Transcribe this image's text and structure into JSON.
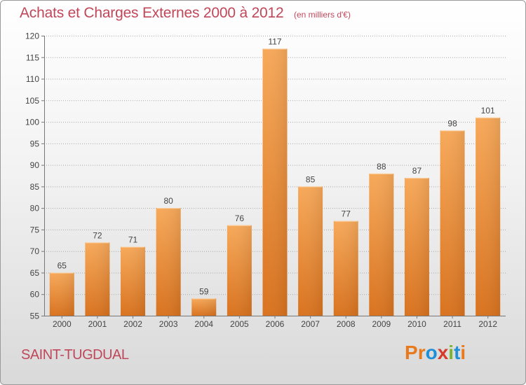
{
  "header": {
    "title": "Achats et Charges Externes 2000 à 2012",
    "unit_note": "(en milliers d'€)"
  },
  "footer": {
    "commune": "SAINT-TUGDUAL",
    "logo_text": "Proxiti",
    "logo_colors": [
      "#e8791d",
      "#e8791d",
      "#1f8fd6",
      "#d63a2a",
      "#7ab52e",
      "#1f8fd6",
      "#e8791d"
    ]
  },
  "colors": {
    "text": "#c0475a",
    "bar_light": "#f7a95a",
    "bar_dark": "#d9731f",
    "grid": "#9a9a9a"
  },
  "chart_data": {
    "type": "bar",
    "title": "Achats et Charges Externes 2000 à 2012",
    "subtitle": "(en milliers d'€)",
    "xlabel": "",
    "ylabel": "",
    "categories": [
      "2000",
      "2001",
      "2002",
      "2003",
      "2004",
      "2005",
      "2006",
      "2007",
      "2008",
      "2009",
      "2010",
      "2011",
      "2012"
    ],
    "values": [
      65,
      72,
      71,
      80,
      59,
      76,
      117,
      85,
      77,
      88,
      87,
      98,
      101
    ],
    "ylim": [
      55,
      120
    ],
    "yticks": [
      55,
      60,
      65,
      70,
      75,
      80,
      85,
      90,
      95,
      100,
      105,
      110,
      115,
      120
    ],
    "grid": true,
    "data_labels": true
  }
}
